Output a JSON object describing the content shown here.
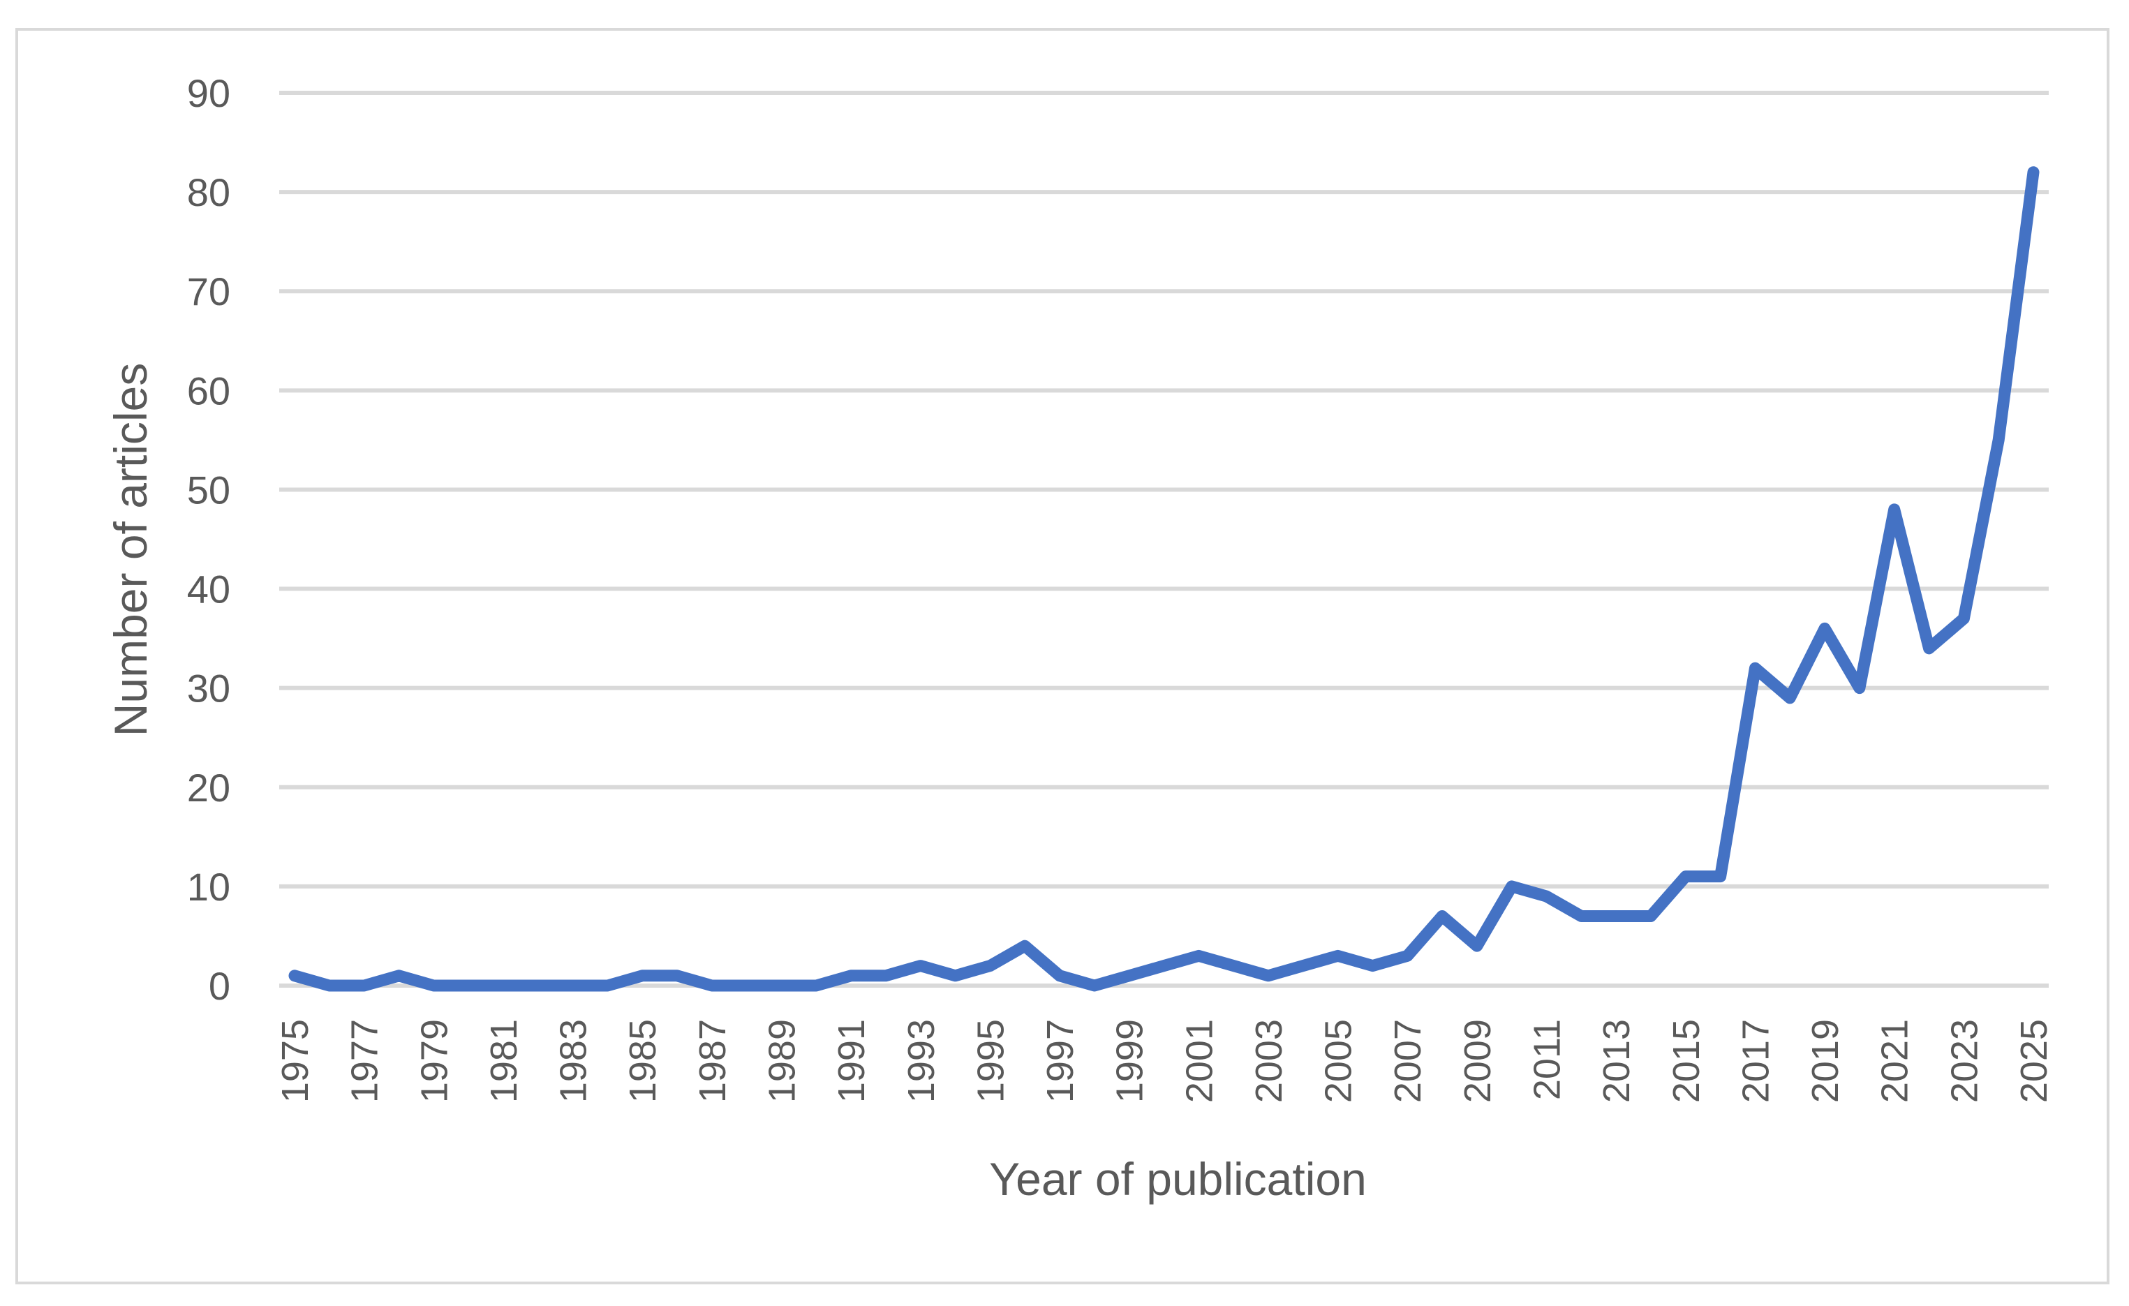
{
  "chart_data": {
    "type": "line",
    "title": "",
    "xlabel": "Year of publication",
    "ylabel": "Number of articles",
    "ylim": [
      0,
      90
    ],
    "yticks": [
      0,
      10,
      20,
      30,
      40,
      50,
      60,
      70,
      80,
      90
    ],
    "grid": true,
    "legend": "none",
    "x": [
      1975,
      1976,
      1977,
      1978,
      1979,
      1980,
      1981,
      1982,
      1983,
      1984,
      1985,
      1986,
      1987,
      1988,
      1989,
      1990,
      1991,
      1992,
      1993,
      1994,
      1995,
      1996,
      1997,
      1998,
      1999,
      2000,
      2001,
      2002,
      2003,
      2004,
      2005,
      2006,
      2007,
      2008,
      2009,
      2010,
      2011,
      2012,
      2013,
      2014,
      2015,
      2016,
      2017,
      2018,
      2019,
      2020,
      2021,
      2022,
      2023,
      2024,
      2025
    ],
    "xtick_labels": [
      "1975",
      "1977",
      "1979",
      "1981",
      "1983",
      "1985",
      "1987",
      "1989",
      "1991",
      "1993",
      "1995",
      "1997",
      "1999",
      "2001",
      "2003",
      "2005",
      "2007",
      "2009",
      "2011",
      "2013",
      "2015",
      "2017",
      "2019",
      "2021",
      "2023",
      "2025"
    ],
    "series": [
      {
        "values": [
          1,
          0,
          0,
          1,
          0,
          0,
          0,
          0,
          0,
          0,
          1,
          1,
          0,
          0,
          0,
          0,
          1,
          1,
          2,
          1,
          2,
          4,
          1,
          0,
          1,
          2,
          3,
          2,
          1,
          2,
          3,
          2,
          3,
          7,
          4,
          10,
          9,
          7,
          7,
          7,
          11,
          11,
          32,
          29,
          36,
          30,
          48,
          34,
          37,
          55,
          82
        ],
        "color": "#4472c4"
      }
    ]
  }
}
